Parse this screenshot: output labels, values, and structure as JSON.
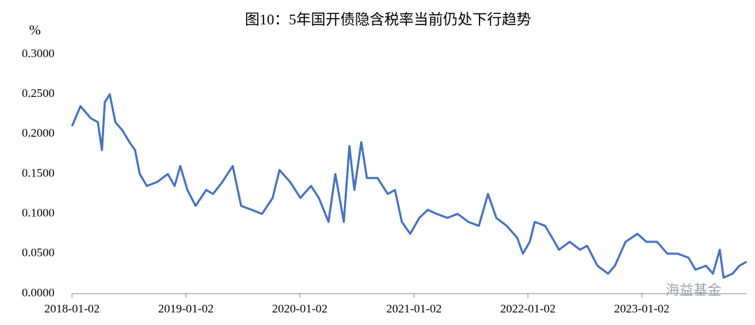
{
  "chart_data": {
    "type": "line",
    "title": "图10：5年国开债隐含税率当前仍处下行趋势",
    "y_label": "%",
    "watermark": "海益基金",
    "x": [
      "2018-01-02",
      "2018-01-29",
      "2018-03-03",
      "2018-03-26",
      "2018-04-08",
      "2018-04-17",
      "2018-05-03",
      "2018-05-21",
      "2018-06-12",
      "2018-07-05",
      "2018-07-23",
      "2018-08-07",
      "2018-08-30",
      "2018-10-02",
      "2018-11-05",
      "2018-11-27",
      "2018-12-15",
      "2019-01-07",
      "2019-02-02",
      "2019-03-08",
      "2019-03-30",
      "2019-04-29",
      "2019-06-01",
      "2019-06-28",
      "2019-08-01",
      "2019-09-03",
      "2019-10-07",
      "2019-10-29",
      "2019-12-02",
      "2020-01-04",
      "2020-02-07",
      "2020-03-03",
      "2020-04-03",
      "2020-04-25",
      "2020-05-22",
      "2020-06-09",
      "2020-06-25",
      "2020-07-17",
      "2020-08-04",
      "2020-09-07",
      "2020-10-10",
      "2020-11-02",
      "2020-11-24",
      "2020-12-21",
      "2021-01-19",
      "2021-02-15",
      "2021-03-16",
      "2021-04-19",
      "2021-05-22",
      "2021-06-25",
      "2021-07-29",
      "2021-08-27",
      "2021-09-23",
      "2021-10-26",
      "2021-11-29",
      "2021-12-17",
      "2022-01-08",
      "2022-01-24",
      "2022-02-26",
      "2022-03-21",
      "2022-04-12",
      "2022-05-16",
      "2022-06-18",
      "2022-07-11",
      "2022-08-13",
      "2022-09-16",
      "2022-10-08",
      "2022-11-11",
      "2022-12-19",
      "2023-01-17",
      "2023-02-20",
      "2023-03-25",
      "2023-04-28",
      "2023-06-01",
      "2023-06-23",
      "2023-07-27",
      "2023-08-18",
      "2023-09-09",
      "2023-09-21",
      "2023-10-20",
      "2023-11-11",
      "2023-12-04"
    ],
    "series": [
      {
        "name": "5年国开债隐含税率",
        "color": "#4472c4",
        "values": [
          0.21,
          0.235,
          0.22,
          0.215,
          0.18,
          0.24,
          0.25,
          0.215,
          0.205,
          0.19,
          0.18,
          0.15,
          0.135,
          0.14,
          0.15,
          0.135,
          0.16,
          0.13,
          0.11,
          0.13,
          0.125,
          0.14,
          0.16,
          0.11,
          0.105,
          0.1,
          0.12,
          0.155,
          0.14,
          0.12,
          0.135,
          0.12,
          0.09,
          0.15,
          0.09,
          0.185,
          0.13,
          0.19,
          0.145,
          0.145,
          0.125,
          0.13,
          0.09,
          0.075,
          0.095,
          0.105,
          0.1,
          0.095,
          0.1,
          0.09,
          0.085,
          0.125,
          0.095,
          0.085,
          0.07,
          0.05,
          0.065,
          0.09,
          0.085,
          0.07,
          0.055,
          0.065,
          0.055,
          0.06,
          0.035,
          0.025,
          0.035,
          0.065,
          0.075,
          0.065,
          0.065,
          0.05,
          0.05,
          0.045,
          0.03,
          0.035,
          0.025,
          0.055,
          0.02,
          0.025,
          0.035,
          0.04
        ]
      }
    ],
    "xlim": [
      "2018-01-02",
      "2023-12-04"
    ],
    "xticks": [
      "2018-01-02",
      "2019-01-02",
      "2020-01-02",
      "2021-01-02",
      "2022-01-02",
      "2023-01-02"
    ],
    "ylim": [
      0,
      0.3
    ],
    "yticks": [
      {
        "value": 0,
        "label": "0.0000"
      },
      {
        "value": 0.05,
        "label": "0.0500"
      },
      {
        "value": 0.1,
        "label": "0.1000"
      },
      {
        "value": 0.15,
        "label": "0.1500"
      },
      {
        "value": 0.2,
        "label": "0.2000"
      },
      {
        "value": 0.25,
        "label": "0.2500"
      },
      {
        "value": 0.3,
        "label": "0.3000"
      }
    ],
    "grid": false
  }
}
